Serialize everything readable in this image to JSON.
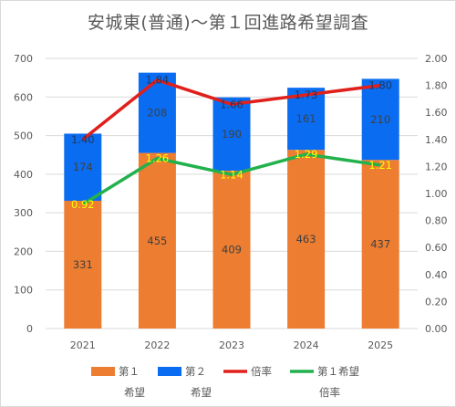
{
  "chart_data": {
    "type": "bar",
    "title": "安城東(普通)～第１回進路希望調査",
    "categories": [
      "2021",
      "2022",
      "2023",
      "2024",
      "2025"
    ],
    "stacked": true,
    "y_left": {
      "lim": [
        0,
        700
      ],
      "ticks": [
        "0",
        "100",
        "200",
        "300",
        "400",
        "500",
        "600",
        "700"
      ]
    },
    "y_right": {
      "lim": [
        0,
        2
      ],
      "ticks": [
        "0.00",
        "0.20",
        "0.40",
        "0.60",
        "0.80",
        "1.00",
        "1.20",
        "1.40",
        "1.60",
        "1.80",
        "2.00"
      ]
    },
    "series": [
      {
        "name": "第１希望",
        "kind": "bar",
        "axis": "left",
        "color": "#ed7d31",
        "values": [
          331,
          455,
          409,
          463,
          437
        ],
        "labels": [
          "331",
          "455",
          "409",
          "463",
          "437"
        ]
      },
      {
        "name": "第２希望",
        "kind": "bar",
        "axis": "left",
        "color": "#0a6cf0",
        "values": [
          174,
          208,
          190,
          161,
          210
        ],
        "labels": [
          "174",
          "208",
          "190",
          "161",
          "210"
        ]
      },
      {
        "name": "倍率",
        "kind": "line",
        "axis": "right",
        "color": "#e0201b",
        "label_color": "#1f3864",
        "values": [
          1.4,
          1.84,
          1.66,
          1.73,
          1.8
        ],
        "labels": [
          "1.40",
          "1.84",
          "1.66",
          "1.73",
          "1.80"
        ]
      },
      {
        "name": "第１希望倍率",
        "kind": "line",
        "axis": "right",
        "color": "#22b14c",
        "label_color": "#ffff00",
        "values": [
          0.92,
          1.26,
          1.14,
          1.29,
          1.21
        ],
        "labels": [
          "0.92",
          "1.26",
          "1.14",
          "1.29",
          "1.21"
        ]
      }
    ],
    "legend": {
      "position": "bottom",
      "items": [
        {
          "line1": "第１",
          "line2": "希望",
          "swatch": "box",
          "color": "#ed7d31"
        },
        {
          "line1": "第２",
          "line2": "希望",
          "swatch": "box",
          "color": "#0a6cf0"
        },
        {
          "line1": "倍率",
          "line2": "",
          "swatch": "line",
          "color": "#e0201b"
        },
        {
          "line1": "第１希望",
          "line2": "倍率",
          "swatch": "line",
          "color": "#22b14c"
        }
      ]
    },
    "grid": true
  }
}
